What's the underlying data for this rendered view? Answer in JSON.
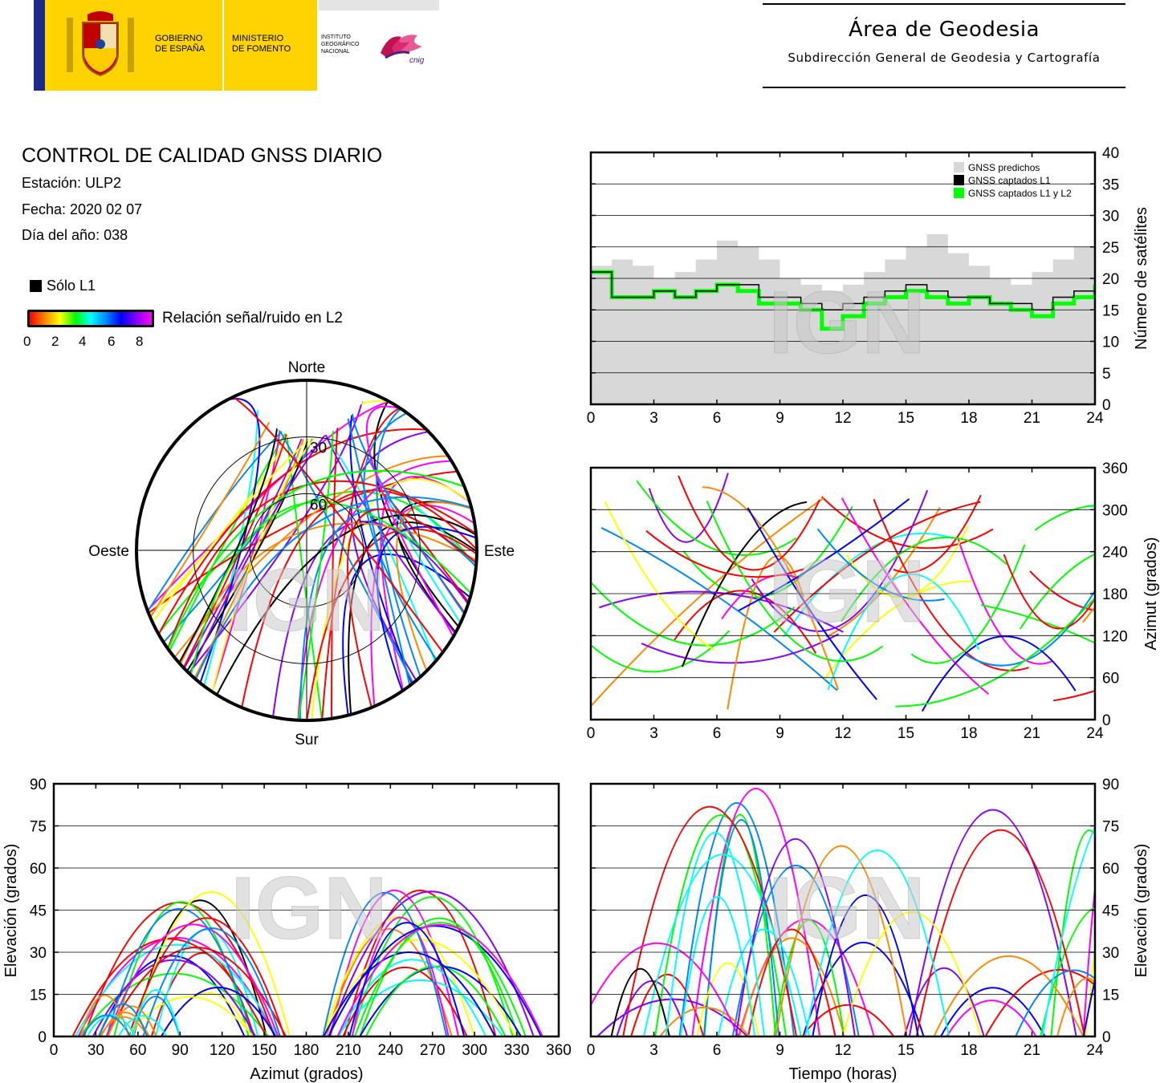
{
  "header": {
    "gov_line1": "GOBIERNO",
    "gov_line2": "DE ESPAÑA",
    "min_line1": "MINISTERIO",
    "min_line2": "DE FOMENTO",
    "inst_line1": "INSTITUTO",
    "inst_line2": "GEOGRÁFICO",
    "inst_line3": "NACIONAL",
    "cnig": "cnig",
    "area_title": "Área de Geodesia",
    "area_subtitle": "Subdirección General de Geodesia y Cartografía"
  },
  "info": {
    "title": "CONTROL DE CALIDAD GNSS DIARIO",
    "station": "Estación: ULP2",
    "date": "Fecha: 2020 02 07",
    "doy": "Día del año: 038"
  },
  "legend": {
    "solo_l1": "Sólo L1",
    "snr_label": "Relación señal/ruido en L2",
    "snr_ticks": [
      "0",
      "2",
      "4",
      "6",
      "8"
    ],
    "colors": [
      "#ff0000",
      "#ff8800",
      "#ffff00",
      "#00ff00",
      "#00ffff",
      "#0088ff",
      "#0000ff",
      "#8800ff",
      "#ff00ff"
    ]
  },
  "watermark": "IGN",
  "chart_data": [
    {
      "type": "line",
      "xlabel": "",
      "ylabel": "Número de satélites",
      "xlim": [
        0,
        24
      ],
      "ylim": [
        0,
        40
      ],
      "xticks": [
        "0",
        "3",
        "6",
        "9",
        "12",
        "15",
        "18",
        "21",
        "24"
      ],
      "yticks": [
        "0",
        "5",
        "10",
        "15",
        "20",
        "25",
        "30",
        "35",
        "40"
      ],
      "grid": "horizontal",
      "legend_position": "top-right",
      "x": [
        0,
        1,
        2,
        3,
        4,
        5,
        6,
        7,
        8,
        9,
        10,
        11,
        12,
        13,
        14,
        15,
        16,
        17,
        18,
        19,
        20,
        21,
        22,
        23,
        24
      ],
      "series": [
        {
          "name": "GNSS predichos",
          "color": "#d8d8d8",
          "values": [
            22,
            23,
            22,
            20,
            21,
            23,
            26,
            25,
            23,
            20,
            19,
            18,
            19,
            21,
            23,
            25,
            27,
            24,
            22,
            20,
            19,
            21,
            23,
            25,
            27
          ]
        },
        {
          "name": "GNSS captados L1",
          "color": "#000000",
          "values": [
            21,
            17,
            17,
            18,
            17,
            18,
            19,
            19,
            17,
            17,
            16,
            15,
            16,
            17,
            18,
            19,
            18,
            17,
            17,
            16,
            16,
            15,
            17,
            18,
            20
          ]
        },
        {
          "name": "GNSS captados L1 y L2",
          "color": "#00ff00",
          "values": [
            21,
            17,
            17,
            18,
            17,
            18,
            19,
            18,
            16,
            16,
            15,
            12,
            14,
            16,
            17,
            18,
            17,
            16,
            17,
            16,
            15,
            14,
            16,
            17,
            19
          ]
        }
      ]
    },
    {
      "type": "scatter",
      "xlabel": "",
      "ylabel": "Azimut (grados)",
      "xlim": [
        0,
        24
      ],
      "ylim": [
        0,
        360
      ],
      "xticks": [
        "0",
        "3",
        "6",
        "9",
        "12",
        "15",
        "18",
        "21",
        "24"
      ],
      "yticks": [
        "0",
        "60",
        "120",
        "180",
        "240",
        "300",
        "360"
      ],
      "grid": "horizontal"
    },
    {
      "type": "scatter",
      "xlabel": "Azimut (grados)",
      "ylabel": "Elevación (grados)",
      "xlim": [
        0,
        360
      ],
      "ylim": [
        0,
        90
      ],
      "xticks": [
        "0",
        "30",
        "60",
        "90",
        "120",
        "150",
        "180",
        "210",
        "240",
        "270",
        "300",
        "330",
        "360"
      ],
      "yticks": [
        "0",
        "15",
        "30",
        "45",
        "60",
        "75",
        "90"
      ],
      "grid": "horizontal"
    },
    {
      "type": "scatter",
      "xlabel": "Tiempo (horas)",
      "ylabel": "Elevación (grados)",
      "xlim": [
        0,
        24
      ],
      "ylim": [
        0,
        90
      ],
      "xticks": [
        "0",
        "3",
        "6",
        "9",
        "12",
        "15",
        "18",
        "21",
        "24"
      ],
      "yticks": [
        "0",
        "15",
        "30",
        "45",
        "60",
        "75",
        "90"
      ],
      "grid": "horizontal"
    },
    {
      "type": "scatter",
      "subtype": "polar skyplot",
      "direction_labels": {
        "north": "Norte",
        "south": "Sur",
        "east": "Este",
        "west": "Oeste"
      },
      "ring_labels": [
        "30",
        "60"
      ]
    }
  ]
}
